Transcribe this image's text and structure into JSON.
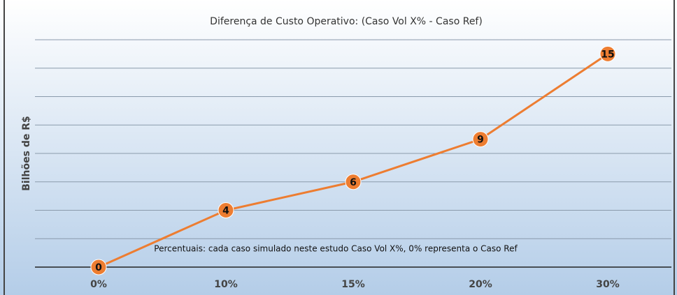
{
  "chart_data": {
    "type": "line",
    "title": "Diferença de Custo Operativo: (Caso Vol X% - Caso Ref)",
    "y_label": "Bilhões de R$",
    "annotation": "Percentuais: cada caso simulado neste estudo Caso Vol X%, 0% representa o Caso Ref",
    "categories": [
      "0%",
      "10%",
      "15%",
      "20%",
      "30%"
    ],
    "values": [
      0,
      4,
      6,
      9,
      15
    ],
    "color": "#ed7d31",
    "ylim": [
      0,
      16
    ],
    "yticks": [
      0,
      2,
      4,
      6,
      8,
      10,
      12,
      14,
      16
    ],
    "grid": true
  }
}
